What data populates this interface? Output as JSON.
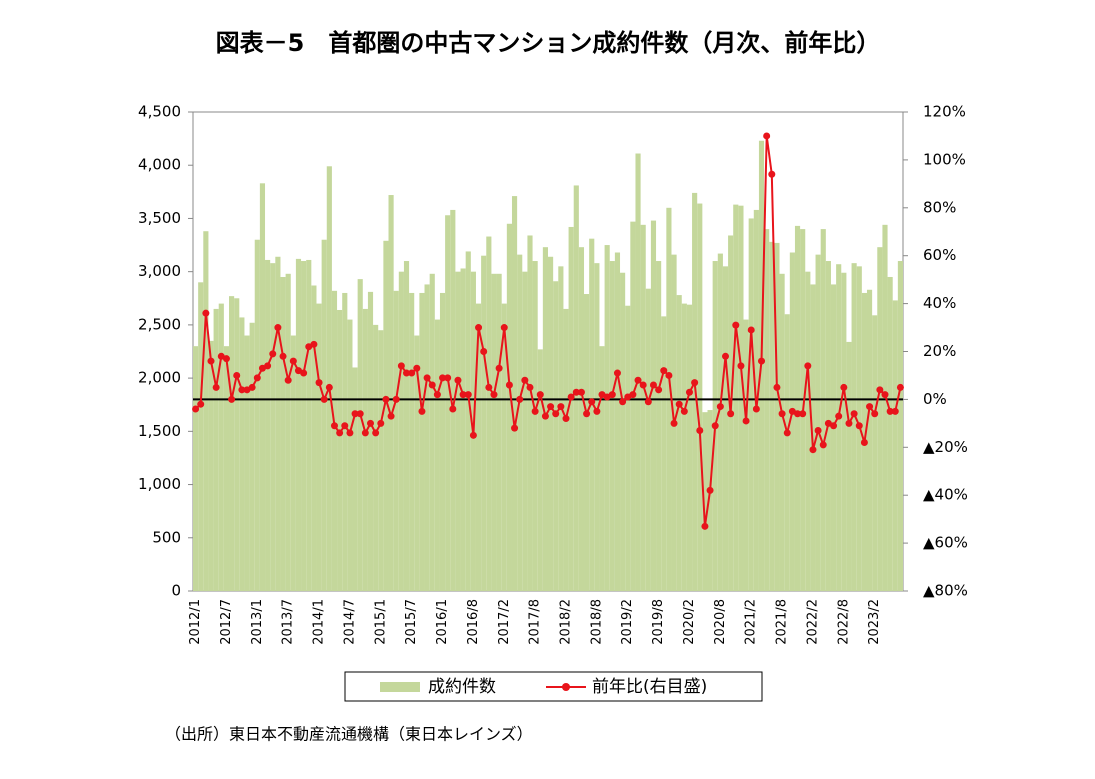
{
  "chart_data": {
    "type": "bar-line",
    "title": "図表－5　首都圏の中古マンション成約件数（月次、前年比）",
    "note": "（出所）東日本不動産流通機構（東日本レインズ）",
    "categories": [
      "2012/1",
      null,
      null,
      null,
      null,
      null,
      "2012/7",
      null,
      null,
      null,
      null,
      null,
      "2013/1",
      null,
      null,
      null,
      null,
      null,
      "2013/7",
      null,
      null,
      null,
      null,
      null,
      "2014/1",
      null,
      null,
      null,
      null,
      null,
      "2014/7",
      null,
      null,
      null,
      null,
      null,
      "2015/1",
      null,
      null,
      null,
      null,
      null,
      "2015/7",
      null,
      null,
      null,
      null,
      null,
      "2016/1",
      null,
      null,
      null,
      null,
      null,
      "2016/8",
      null,
      null,
      null,
      null,
      null,
      "2017/2",
      null,
      null,
      null,
      null,
      null,
      "2017/8",
      null,
      null,
      null,
      null,
      null,
      "2018/2",
      null,
      null,
      null,
      null,
      null,
      "2018/8",
      null,
      null,
      null,
      null,
      null,
      "2019/2",
      null,
      null,
      null,
      null,
      null,
      "2019/8",
      null,
      null,
      null,
      null,
      null,
      "2020/2",
      null,
      null,
      null,
      null,
      null,
      "2020/8",
      null,
      null,
      null,
      null,
      null,
      "2021/2",
      null,
      null,
      null,
      null,
      null,
      "2021/8",
      null,
      null,
      null,
      null,
      null,
      "2022/2",
      null,
      null,
      null,
      null,
      null,
      "2022/8",
      null,
      null,
      null,
      null,
      null,
      "2023/2",
      null,
      null,
      null,
      null,
      null
    ],
    "series": [
      {
        "name": "成約件数",
        "color": "#c4d79b",
        "values": [
          2300,
          2900,
          3380,
          2350,
          2650,
          2700,
          2300,
          2770,
          2750,
          2570,
          2400,
          2520,
          3300,
          3830,
          3110,
          3080,
          3140,
          2950,
          2980,
          2400,
          3120,
          3100,
          3110,
          2870,
          2700,
          3300,
          3990,
          2820,
          2640,
          2800,
          2550,
          2100,
          2930,
          2650,
          2810,
          2500,
          2450,
          3290,
          3720,
          2820,
          3000,
          3100,
          2800,
          2400,
          2800,
          2880,
          2980,
          2550,
          2800,
          3530,
          3580,
          3000,
          3030,
          3190,
          3000,
          2700,
          3150,
          3330,
          2980,
          2980,
          2700,
          3450,
          3710,
          3160,
          3000,
          3340,
          3100,
          2270,
          3230,
          3140,
          2910,
          3050,
          2650,
          3420,
          3810,
          3230,
          2790,
          3310,
          3080,
          2300,
          3250,
          3100,
          3180,
          2990,
          2680,
          3470,
          4110,
          3440,
          2840,
          3480,
          3100,
          2580,
          3600,
          3160,
          2780,
          2700,
          2690,
          3740,
          3640,
          1680,
          1700,
          3100,
          3170,
          3050,
          3340,
          3630,
          3620,
          2550,
          3500,
          3580,
          4230,
          3400,
          3280,
          3270,
          2980,
          2600,
          3180,
          3430,
          3400,
          3000,
          2880,
          3160,
          3400,
          3100,
          2880,
          3070,
          2990,
          2340,
          3080,
          3050,
          2800,
          2830,
          2590,
          3230,
          3440,
          2950,
          2730,
          3100
        ]
      },
      {
        "name": "前年比(右目盛)",
        "color": "#e8141b",
        "axis": "y2",
        "values": [
          -4,
          -2,
          36,
          16,
          5,
          18,
          17,
          0,
          10,
          4,
          4,
          5,
          9,
          13,
          14,
          19,
          30,
          18,
          8,
          16,
          12,
          11,
          22,
          23,
          7,
          0,
          5,
          -11,
          -14,
          -11,
          -14,
          -6,
          -6,
          -14,
          -10,
          -14,
          -10,
          0,
          -7,
          0,
          14,
          11,
          11,
          13,
          -5,
          9,
          6,
          2,
          9,
          9,
          -4,
          8,
          2,
          2,
          -15,
          30,
          20,
          5,
          2,
          13,
          30,
          6,
          -12,
          0,
          8,
          5,
          -5,
          2,
          -7,
          -3,
          -6,
          -3,
          -8,
          1,
          3,
          3,
          -6,
          -1,
          -5,
          2,
          1,
          2,
          11,
          -1,
          1,
          2,
          8,
          6,
          -1,
          6,
          4,
          12,
          10,
          -10,
          -2,
          -5,
          3,
          7,
          -13,
          -53,
          -38,
          -11,
          -3,
          18,
          -6,
          31,
          14,
          -9,
          29,
          -4,
          16,
          110,
          94,
          5,
          -6,
          -14,
          -5,
          -6,
          -6,
          14,
          -21,
          -13,
          -19,
          -10,
          -11,
          -7,
          5,
          -10,
          -6,
          -11,
          -18,
          -3,
          -6,
          4,
          2,
          -5,
          -5,
          5
        ]
      }
    ],
    "ylim": [
      0,
      4500
    ],
    "yticks": [
      0,
      500,
      {
        "value": 1000,
        "label": "1,000"
      },
      {
        "value": 1500,
        "label": "1,500"
      },
      {
        "value": 2000,
        "label": "2,000"
      },
      {
        "value": 2500,
        "label": "2,500"
      },
      {
        "value": 3000,
        "label": "3,000"
      },
      {
        "value": 3500,
        "label": "3,500"
      },
      {
        "value": 4000,
        "label": "4,000"
      },
      {
        "value": 4500,
        "label": "4,500"
      }
    ],
    "y2lim": [
      -80,
      120
    ],
    "y2ticks": [
      {
        "value": -80,
        "label": "▲80%"
      },
      {
        "value": -60,
        "label": "▲60%"
      },
      {
        "value": -40,
        "label": "▲40%"
      },
      {
        "value": -20,
        "label": "▲20%"
      },
      {
        "value": 0,
        "label": "0%"
      },
      {
        "value": 20,
        "label": "20%"
      },
      {
        "value": 40,
        "label": "40%"
      },
      {
        "value": 60,
        "label": "60%"
      },
      {
        "value": 80,
        "label": "80%"
      },
      {
        "value": 100,
        "label": "100%"
      },
      {
        "value": 120,
        "label": "120%"
      }
    ],
    "legend": "bottom"
  }
}
